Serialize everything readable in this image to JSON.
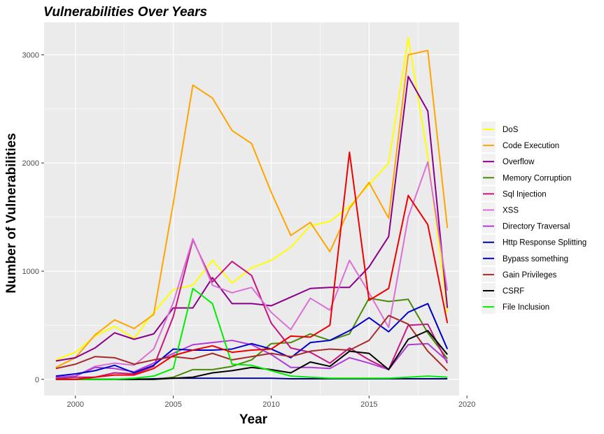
{
  "chart_data": {
    "type": "line",
    "title": "Vulnerabilities Over Years",
    "xlabel": "Year",
    "ylabel": "Number of Vulnerabilities",
    "xlim": [
      1998.4,
      2019.6
    ],
    "ylim": [
      -150,
      3300
    ],
    "x_ticks": [
      2000,
      2005,
      2010,
      2015,
      2020
    ],
    "y_ticks": [
      0,
      1000,
      2000,
      3000
    ],
    "grid": true,
    "panel_background": "#ebebeb",
    "legend_position": "right",
    "x": [
      1999,
      2000,
      2001,
      2002,
      2003,
      2004,
      2005,
      2006,
      2007,
      2008,
      2009,
      2010,
      2011,
      2012,
      2013,
      2014,
      2015,
      2016,
      2017,
      2018,
      2019
    ],
    "series": [
      {
        "name": "DoS",
        "color": "#ffff00",
        "values": [
          180,
          250,
          400,
          490,
          380,
          620,
          830,
          870,
          1100,
          890,
          1030,
          1100,
          1220,
          1420,
          1460,
          1600,
          1800,
          2000,
          3160,
          2060,
          620
        ]
      },
      {
        "name": "Code Execution",
        "color": "#ffa500",
        "values": [
          110,
          200,
          410,
          550,
          470,
          600,
          1630,
          2720,
          2600,
          2300,
          2180,
          1730,
          1330,
          1450,
          1180,
          1580,
          1820,
          1490,
          3000,
          3040,
          1400
        ]
      },
      {
        "name": "Overflow",
        "color": "#8b008b",
        "values": [
          170,
          200,
          290,
          430,
          370,
          420,
          660,
          660,
          940,
          700,
          700,
          680,
          760,
          840,
          850,
          850,
          1040,
          1320,
          2800,
          2480,
          660
        ]
      },
      {
        "name": "Memory Corruption",
        "color": "#4b8a08",
        "values": [
          0,
          0,
          0,
          0,
          0,
          0,
          20,
          90,
          90,
          120,
          180,
          330,
          340,
          420,
          360,
          420,
          750,
          720,
          740,
          430,
          190
        ]
      },
      {
        "name": "Sql Injection",
        "color": "#c71585",
        "values": [
          10,
          20,
          20,
          60,
          50,
          120,
          580,
          1290,
          900,
          1090,
          960,
          520,
          290,
          250,
          150,
          290,
          180,
          90,
          500,
          510,
          150
        ]
      },
      {
        "name": "XSS",
        "color": "#da70d6",
        "values": [
          20,
          30,
          120,
          150,
          130,
          280,
          710,
          1300,
          870,
          800,
          850,
          620,
          460,
          750,
          640,
          1100,
          800,
          480,
          1500,
          2010,
          820
        ]
      },
      {
        "name": "Directory Traversal",
        "color": "#b03cd6",
        "values": [
          20,
          30,
          110,
          100,
          70,
          150,
          240,
          320,
          340,
          360,
          320,
          230,
          110,
          110,
          100,
          200,
          150,
          90,
          320,
          330,
          170
        ]
      },
      {
        "name": "Http Response Splitting",
        "color": "#00008b",
        "values": [
          0,
          0,
          0,
          0,
          0,
          5,
          10,
          10,
          10,
          10,
          10,
          10,
          5,
          5,
          5,
          5,
          5,
          5,
          5,
          5,
          5
        ]
      },
      {
        "name": "Bypass something",
        "color": "#0000cd",
        "values": [
          30,
          50,
          80,
          130,
          60,
          130,
          280,
          270,
          270,
          280,
          330,
          280,
          200,
          340,
          360,
          450,
          570,
          440,
          620,
          700,
          280
        ]
      },
      {
        "name": "Gain Privileges",
        "color": "#a52a2a",
        "values": [
          100,
          140,
          210,
          200,
          140,
          180,
          210,
          190,
          240,
          180,
          210,
          240,
          210,
          260,
          280,
          270,
          360,
          590,
          510,
          260,
          80
        ]
      },
      {
        "name": "CSRF",
        "color": "#000000",
        "values": [
          0,
          0,
          0,
          0,
          0,
          0,
          10,
          20,
          60,
          80,
          110,
          90,
          60,
          160,
          120,
          260,
          240,
          90,
          370,
          450,
          230
        ]
      },
      {
        "name": "File Inclusion",
        "color": "#00ee00",
        "values": [
          0,
          0,
          0,
          0,
          10,
          30,
          100,
          840,
          700,
          140,
          130,
          80,
          30,
          20,
          10,
          10,
          10,
          10,
          20,
          30,
          20
        ]
      },
      {
        "name": "",
        "color": "#ee0000",
        "values": [
          0,
          0,
          20,
          40,
          40,
          100,
          220,
          270,
          310,
          250,
          270,
          280,
          400,
          390,
          500,
          2100,
          730,
          840,
          1700,
          1430,
          520
        ]
      }
    ]
  }
}
